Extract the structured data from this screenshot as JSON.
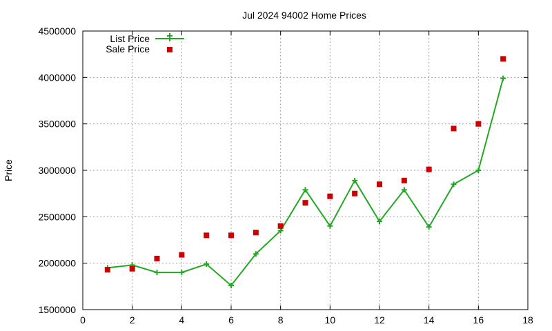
{
  "chart_data": {
    "type": "line",
    "title": "Jul 2024 94002 Home Prices",
    "xlabel": "",
    "ylabel": "Price",
    "xlim": [
      0,
      18
    ],
    "ylim": [
      1500000,
      4500000
    ],
    "xticks": [
      0,
      2,
      4,
      6,
      8,
      10,
      12,
      14,
      16,
      18
    ],
    "yticks": [
      1500000,
      2000000,
      2500000,
      3000000,
      3500000,
      4000000,
      4500000
    ],
    "grid": true,
    "legend_position": "top-left",
    "series": [
      {
        "name": "List Price",
        "style": "line-with-plus-markers",
        "color": "#22a822",
        "x": [
          1,
          2,
          3,
          4,
          5,
          6,
          7,
          8,
          9,
          10,
          11,
          12,
          13,
          14,
          15,
          16,
          17
        ],
        "values": [
          1950000,
          1980000,
          1900000,
          1900000,
          1990000,
          1760000,
          2100000,
          2350000,
          2790000,
          2400000,
          2890000,
          2450000,
          2790000,
          2390000,
          2850000,
          3000000,
          3990000
        ]
      },
      {
        "name": "Sale Price",
        "style": "square-markers",
        "color": "#cc0000",
        "x": [
          1,
          2,
          3,
          4,
          5,
          6,
          7,
          8,
          9,
          10,
          11,
          12,
          13,
          14,
          15,
          16,
          17
        ],
        "values": [
          1930000,
          1940000,
          2050000,
          2090000,
          2300000,
          2300000,
          2330000,
          2400000,
          2650000,
          2720000,
          2750000,
          2850000,
          2890000,
          3010000,
          3450000,
          3500000,
          4200000
        ]
      }
    ]
  }
}
